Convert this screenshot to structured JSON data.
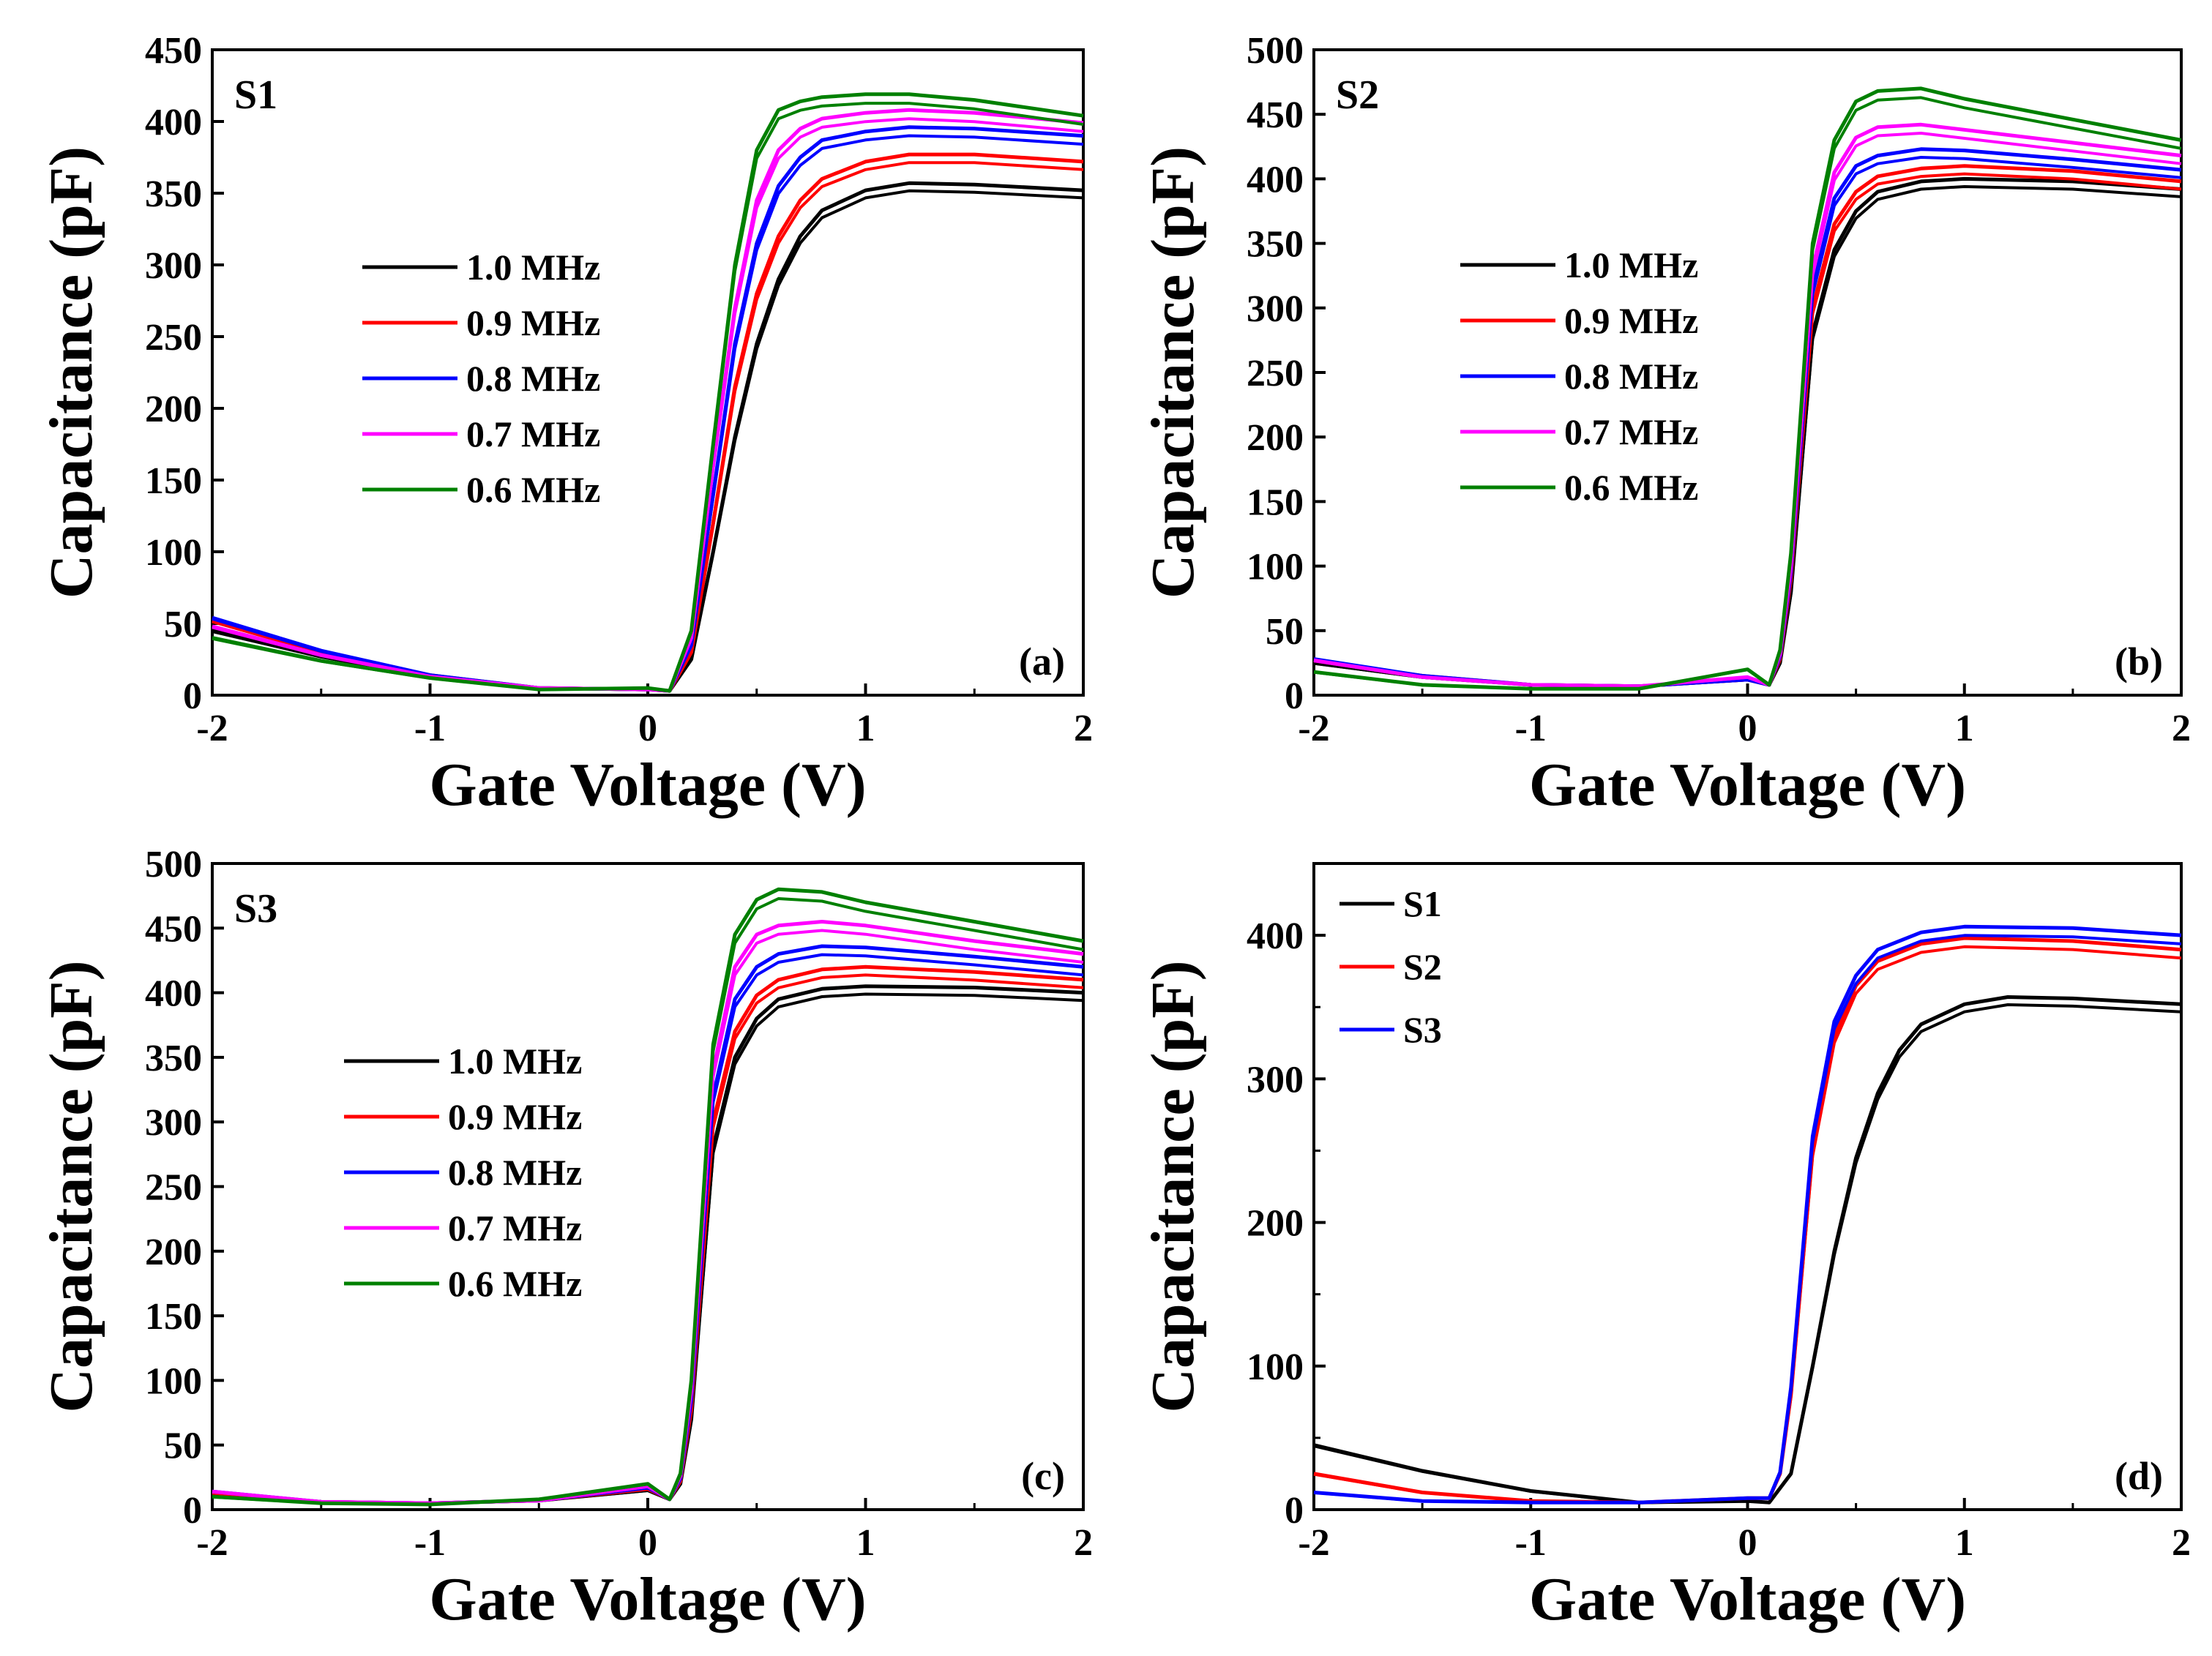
{
  "figure": {
    "description_panels": [
      "a",
      "b",
      "c",
      "d"
    ]
  },
  "chart_data": [
    {
      "type": "line",
      "panel_label": "(a)",
      "title": "S1",
      "xlabel": "Gate Voltage (V)",
      "ylabel": "Capacitance (pF)",
      "xlim": [
        -2,
        2
      ],
      "ylim": [
        0,
        450
      ],
      "xticks": [
        -2,
        -1,
        0,
        1,
        2
      ],
      "yticks": [
        0,
        50,
        100,
        150,
        200,
        250,
        300,
        350,
        400,
        450
      ],
      "legend_position": "center-left",
      "series": [
        {
          "name": "1.0 MHz",
          "color": "#000000",
          "x": [
            -2,
            -1.5,
            -1,
            -0.5,
            0,
            0.1,
            0.2,
            0.3,
            0.4,
            0.5,
            0.6,
            0.7,
            0.8,
            1.0,
            1.2,
            1.5,
            2.0
          ],
          "y": [
            45,
            27,
            13,
            5,
            4,
            3,
            25,
            100,
            180,
            245,
            290,
            320,
            338,
            352,
            357,
            356,
            352
          ]
        },
        {
          "name": "0.9 MHz",
          "color": "#ff0000",
          "x": [
            -2,
            -1.5,
            -1,
            -0.5,
            0,
            0.1,
            0.2,
            0.3,
            0.4,
            0.5,
            0.6,
            0.7,
            0.8,
            1.0,
            1.2,
            1.5,
            2.0
          ],
          "y": [
            52,
            30,
            14,
            5,
            4,
            3,
            30,
            120,
            215,
            280,
            320,
            345,
            360,
            372,
            377,
            377,
            372
          ]
        },
        {
          "name": "0.8 MHz",
          "color": "#0000ff",
          "x": [
            -2,
            -1.5,
            -1,
            -0.5,
            0,
            0.1,
            0.2,
            0.3,
            0.4,
            0.5,
            0.6,
            0.7,
            0.8,
            1.0,
            1.2,
            1.5,
            2.0
          ],
          "y": [
            54,
            31,
            14,
            5,
            4,
            3,
            35,
            140,
            245,
            315,
            355,
            375,
            387,
            393,
            396,
            395,
            390
          ]
        },
        {
          "name": "0.7 MHz",
          "color": "#ff00ff",
          "x": [
            -2,
            -1.5,
            -1,
            -0.5,
            0,
            0.1,
            0.2,
            0.3,
            0.4,
            0.5,
            0.6,
            0.7,
            0.8,
            1.0,
            1.2,
            1.5,
            2.0
          ],
          "y": [
            48,
            28,
            13,
            5,
            4,
            3,
            40,
            160,
            270,
            345,
            380,
            395,
            402,
            406,
            408,
            406,
            399
          ]
        },
        {
          "name": "0.6 MHz",
          "color": "#008000",
          "x": [
            -2,
            -1.5,
            -1,
            -0.5,
            0,
            0.1,
            0.2,
            0.3,
            0.4,
            0.5,
            0.6,
            0.7,
            0.8,
            1.0,
            1.2,
            1.5,
            2.0
          ],
          "y": [
            40,
            24,
            12,
            4,
            5,
            3,
            45,
            175,
            300,
            380,
            408,
            414,
            417,
            419,
            419,
            415,
            404
          ]
        }
      ]
    },
    {
      "type": "line",
      "panel_label": "(b)",
      "title": "S2",
      "xlabel": "Gate Voltage (V)",
      "ylabel": "Capacitance (pF)",
      "xlim": [
        -2,
        2
      ],
      "ylim": [
        0,
        500
      ],
      "xticks": [
        -2,
        -1,
        0,
        1,
        2
      ],
      "yticks": [
        0,
        50,
        100,
        150,
        200,
        250,
        300,
        350,
        400,
        450,
        500
      ],
      "legend_position": "center-left",
      "series": [
        {
          "name": "1.0 MHz",
          "color": "#000000",
          "x": [
            -2,
            -1.5,
            -1,
            -0.5,
            0,
            0.1,
            0.15,
            0.2,
            0.3,
            0.4,
            0.5,
            0.6,
            0.8,
            1.0,
            1.5,
            2.0
          ],
          "y": [
            25,
            14,
            8,
            7,
            12,
            8,
            25,
            80,
            280,
            345,
            375,
            390,
            398,
            400,
            398,
            392
          ]
        },
        {
          "name": "0.9 MHz",
          "color": "#ff0000",
          "x": [
            -2,
            -1.5,
            -1,
            -0.5,
            0,
            0.1,
            0.15,
            0.2,
            0.3,
            0.4,
            0.5,
            0.6,
            0.8,
            1.0,
            1.5,
            2.0
          ],
          "y": [
            27,
            15,
            8,
            7,
            12,
            8,
            28,
            90,
            300,
            365,
            390,
            402,
            408,
            410,
            406,
            398
          ]
        },
        {
          "name": "0.8 MHz",
          "color": "#0000ff",
          "x": [
            -2,
            -1.5,
            -1,
            -0.5,
            0,
            0.1,
            0.15,
            0.2,
            0.3,
            0.4,
            0.5,
            0.6,
            0.8,
            1.0,
            1.5,
            2.0
          ],
          "y": [
            28,
            15,
            8,
            7,
            12,
            8,
            30,
            95,
            315,
            385,
            410,
            418,
            423,
            422,
            415,
            407
          ]
        },
        {
          "name": "0.7 MHz",
          "color": "#ff00ff",
          "x": [
            -2,
            -1.5,
            -1,
            -0.5,
            0,
            0.1,
            0.15,
            0.2,
            0.3,
            0.4,
            0.5,
            0.6,
            0.8,
            1.0,
            1.5,
            2.0
          ],
          "y": [
            27,
            14,
            8,
            7,
            14,
            8,
            32,
            100,
            330,
            405,
            432,
            440,
            442,
            438,
            428,
            418
          ]
        },
        {
          "name": "0.6 MHz",
          "color": "#008000",
          "x": [
            -2,
            -1.5,
            -1,
            -0.5,
            0,
            0.1,
            0.15,
            0.2,
            0.3,
            0.4,
            0.5,
            0.6,
            0.8,
            1.0,
            1.5,
            2.0
          ],
          "y": [
            18,
            8,
            5,
            5,
            20,
            8,
            35,
            110,
            350,
            430,
            460,
            468,
            470,
            462,
            446,
            430
          ]
        }
      ]
    },
    {
      "type": "line",
      "panel_label": "(c)",
      "title": "S3",
      "xlabel": "Gate Voltage (V)",
      "ylabel": "Capacitance (pF)",
      "xlim": [
        -2,
        2
      ],
      "ylim": [
        0,
        500
      ],
      "xticks": [
        -2,
        -1,
        0,
        1,
        2
      ],
      "yticks": [
        0,
        50,
        100,
        150,
        200,
        250,
        300,
        350,
        400,
        450,
        500
      ],
      "legend_position": "center-left",
      "series": [
        {
          "name": "1.0 MHz",
          "color": "#000000",
          "x": [
            -2,
            -1.5,
            -1,
            -0.5,
            0,
            0.1,
            0.15,
            0.2,
            0.3,
            0.4,
            0.5,
            0.6,
            0.8,
            1.0,
            1.5,
            2.0
          ],
          "y": [
            12,
            6,
            5,
            7,
            15,
            8,
            20,
            70,
            280,
            350,
            380,
            395,
            403,
            405,
            404,
            400
          ]
        },
        {
          "name": "0.9 MHz",
          "color": "#ff0000",
          "x": [
            -2,
            -1.5,
            -1,
            -0.5,
            0,
            0.1,
            0.15,
            0.2,
            0.3,
            0.4,
            0.5,
            0.6,
            0.8,
            1.0,
            1.5,
            2.0
          ],
          "y": [
            13,
            6,
            5,
            7,
            16,
            8,
            22,
            78,
            300,
            370,
            398,
            410,
            418,
            420,
            416,
            410
          ]
        },
        {
          "name": "0.8 MHz",
          "color": "#0000ff",
          "x": [
            -2,
            -1.5,
            -1,
            -0.5,
            0,
            0.1,
            0.15,
            0.2,
            0.3,
            0.4,
            0.5,
            0.6,
            0.8,
            1.0,
            1.5,
            2.0
          ],
          "y": [
            14,
            6,
            5,
            7,
            17,
            8,
            24,
            85,
            320,
            395,
            420,
            430,
            436,
            435,
            428,
            420
          ]
        },
        {
          "name": "0.7 MHz",
          "color": "#ff00ff",
          "x": [
            -2,
            -1.5,
            -1,
            -0.5,
            0,
            0.1,
            0.15,
            0.2,
            0.3,
            0.4,
            0.5,
            0.6,
            0.8,
            1.0,
            1.5,
            2.0
          ],
          "y": [
            14,
            6,
            5,
            7,
            18,
            8,
            26,
            92,
            340,
            420,
            445,
            452,
            455,
            452,
            440,
            430
          ]
        },
        {
          "name": "0.6 MHz",
          "color": "#008000",
          "x": [
            -2,
            -1.5,
            -1,
            -0.5,
            0,
            0.1,
            0.15,
            0.2,
            0.3,
            0.4,
            0.5,
            0.6,
            0.8,
            1.0,
            1.5,
            2.0
          ],
          "y": [
            10,
            5,
            4,
            8,
            20,
            8,
            28,
            100,
            360,
            445,
            472,
            480,
            478,
            470,
            455,
            440
          ]
        }
      ]
    },
    {
      "type": "line",
      "panel_label": "(d)",
      "title": "",
      "xlabel": "Gate Voltage (V)",
      "ylabel": "Capacitance (pF)",
      "xlim": [
        -2,
        2
      ],
      "ylim": [
        0,
        450
      ],
      "xticks": [
        -2,
        -1,
        0,
        1,
        2
      ],
      "yticks": [
        0,
        100,
        200,
        300,
        400
      ],
      "legend_position": "top-left",
      "series": [
        {
          "name": "S1",
          "color": "#000000",
          "x": [
            -2,
            -1.5,
            -1,
            -0.5,
            0,
            0.1,
            0.2,
            0.3,
            0.4,
            0.5,
            0.6,
            0.7,
            0.8,
            1.0,
            1.2,
            1.5,
            2.0
          ],
          "y": [
            45,
            27,
            13,
            5,
            6,
            5,
            25,
            100,
            180,
            245,
            290,
            320,
            338,
            352,
            357,
            356,
            352
          ]
        },
        {
          "name": "S2",
          "color": "#ff0000",
          "x": [
            -2,
            -1.5,
            -1,
            -0.5,
            0,
            0.1,
            0.15,
            0.2,
            0.3,
            0.4,
            0.5,
            0.6,
            0.8,
            1.0,
            1.5,
            2.0
          ],
          "y": [
            25,
            12,
            6,
            5,
            8,
            8,
            25,
            80,
            250,
            330,
            365,
            382,
            394,
            398,
            396,
            390
          ]
        },
        {
          "name": "S3",
          "color": "#0000ff",
          "x": [
            -2,
            -1.5,
            -1,
            -0.5,
            0,
            0.1,
            0.15,
            0.2,
            0.3,
            0.4,
            0.5,
            0.6,
            0.8,
            1.0,
            1.5,
            2.0
          ],
          "y": [
            12,
            6,
            5,
            5,
            8,
            8,
            26,
            85,
            260,
            340,
            372,
            390,
            402,
            406,
            405,
            400
          ]
        }
      ]
    }
  ]
}
